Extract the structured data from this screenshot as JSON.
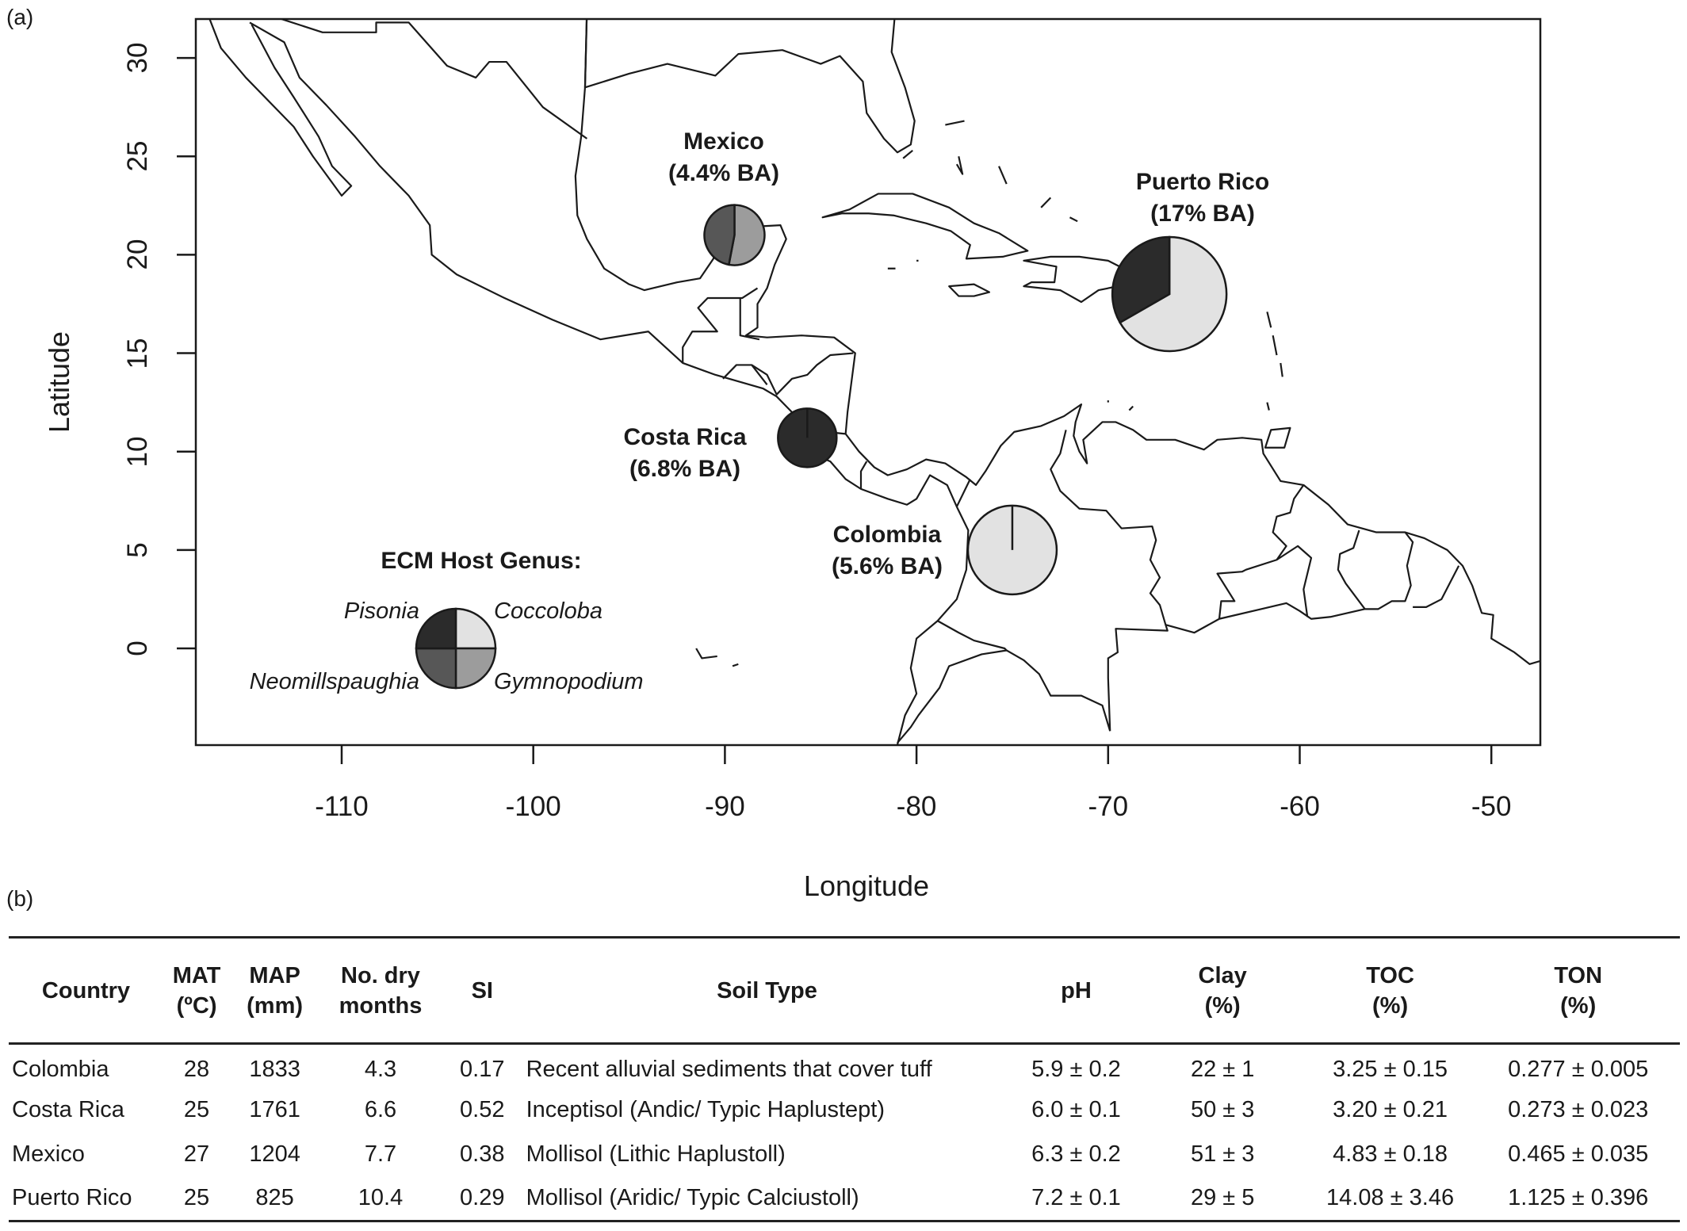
{
  "panel_a_label": "(a)",
  "panel_b_label": "(b)",
  "map": {
    "x_axis": {
      "title": "Longitude",
      "ticks": [
        "-110",
        "-100",
        "-90",
        "-80",
        "-70",
        "-60",
        "-50"
      ],
      "tick_values": [
        -110,
        -100,
        -90,
        -80,
        -70,
        -60,
        -50
      ]
    },
    "y_axis": {
      "title": "Latitude",
      "ticks": [
        "0",
        "5",
        "10",
        "15",
        "20",
        "25",
        "30"
      ],
      "tick_values": [
        0,
        5,
        10,
        15,
        20,
        25,
        30
      ]
    },
    "colors": {
      "Pisonia": "#2b2b2b",
      "Coccoloba": "#e2e2e2",
      "Gymnopodium": "#9c9c9c",
      "Neomillspaughia": "#575757"
    },
    "sites": [
      {
        "name": "Mexico",
        "ba": "(4.4% BA)",
        "lon": -89.5,
        "lat": 21,
        "slices": [
          {
            "genus": "Gymnopodium",
            "fraction": 0.53
          },
          {
            "genus": "Neomillspaughia",
            "fraction": 0.47
          }
        ]
      },
      {
        "name": "Puerto Rico",
        "ba": "(17% BA)",
        "lon": -66.8,
        "lat": 18,
        "slices": [
          {
            "genus": "Coccoloba",
            "fraction": 0.667
          },
          {
            "genus": "Pisonia",
            "fraction": 0.333
          }
        ]
      },
      {
        "name": "Costa Rica",
        "ba": "(6.8% BA)",
        "lon": -85.7,
        "lat": 10.7,
        "slices": [
          {
            "genus": "Pisonia",
            "fraction": 1.0
          }
        ]
      },
      {
        "name": "Colombia",
        "ba": "(5.6% BA)",
        "lon": -75,
        "lat": 5,
        "slices": [
          {
            "genus": "Coccoloba",
            "fraction": 1.0
          }
        ]
      }
    ],
    "legend": {
      "title": "ECM Host Genus:",
      "labels": {
        "Pisonia": "Pisonia",
        "Coccoloba": "Coccoloba",
        "Neomillspaughia": "Neomillspaughia",
        "Gymnopodium": "Gymnopodium"
      }
    }
  },
  "table": {
    "headers": [
      {
        "l1": "Country",
        "l2": ""
      },
      {
        "l1": "MAT",
        "l2": "(ºC)"
      },
      {
        "l1": "MAP",
        "l2": "(mm)"
      },
      {
        "l1": "No. dry",
        "l2": "months"
      },
      {
        "l1": "SI",
        "l2": ""
      },
      {
        "l1": "Soil Type",
        "l2": ""
      },
      {
        "l1": "pH",
        "l2": ""
      },
      {
        "l1": "Clay",
        "l2": "(%)"
      },
      {
        "l1": "TOC",
        "l2": "(%)"
      },
      {
        "l1": "TON",
        "l2": "(%)"
      }
    ],
    "rows": [
      [
        "Colombia",
        "28",
        "1833",
        "4.3",
        "0.17",
        "Recent alluvial sediments that cover tuff",
        "5.9 ± 0.2",
        "22 ± 1",
        "3.25 ± 0.15",
        "0.277 ± 0.005"
      ],
      [
        "Costa Rica",
        "25",
        "1761",
        "6.6",
        "0.52",
        "Inceptisol (Andic/ Typic Haplustept)",
        "6.0 ± 0.1",
        "50 ± 3",
        "3.20 ± 0.21",
        "0.273 ± 0.023"
      ],
      [
        "Mexico",
        "27",
        "1204",
        "7.7",
        "0.38",
        "Mollisol (Lithic Haplustoll)",
        "6.3 ± 0.2",
        "51 ± 3",
        "4.83 ± 0.18",
        "0.465 ± 0.035"
      ],
      [
        "Puerto Rico",
        "25",
        "825",
        "10.4",
        "0.29",
        "Mollisol (Aridic/ Typic Calciustoll)",
        "7.2 ± 0.1",
        "29 ± 5",
        "14.08 ± 3.46",
        "1.125 ± 0.396"
      ]
    ]
  }
}
